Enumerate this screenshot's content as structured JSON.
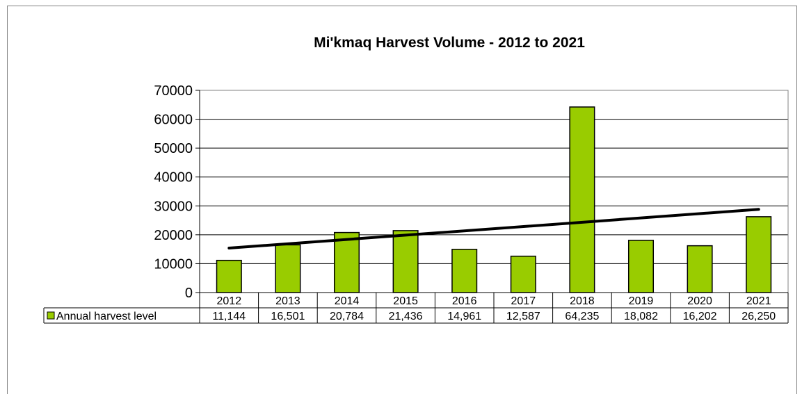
{
  "chart_data": {
    "type": "bar",
    "title": "Mi'kmaq Harvest Volume - 2012 to 2021",
    "categories": [
      "2012",
      "2013",
      "2014",
      "2015",
      "2016",
      "2017",
      "2018",
      "2019",
      "2020",
      "2021"
    ],
    "series": [
      {
        "name": "Annual harvest level",
        "values": [
          11144,
          16501,
          20784,
          21436,
          14961,
          12587,
          64235,
          18082,
          16202,
          26250
        ],
        "labels": [
          "11,144",
          "16,501",
          "20,784",
          "21,436",
          "14,961",
          "12,587",
          "64,235",
          "18,082",
          "16,202",
          "26,250"
        ],
        "color": "#99cc00"
      }
    ],
    "trendline": {
      "type": "linear",
      "start": 15400,
      "end": 28800,
      "color": "#000000"
    },
    "yticks": [
      "0",
      "10000",
      "20000",
      "30000",
      "40000",
      "50000",
      "60000",
      "70000"
    ],
    "ylim": [
      0,
      70000
    ],
    "grid": true,
    "legend": "data-table-left",
    "data_table": true
  }
}
